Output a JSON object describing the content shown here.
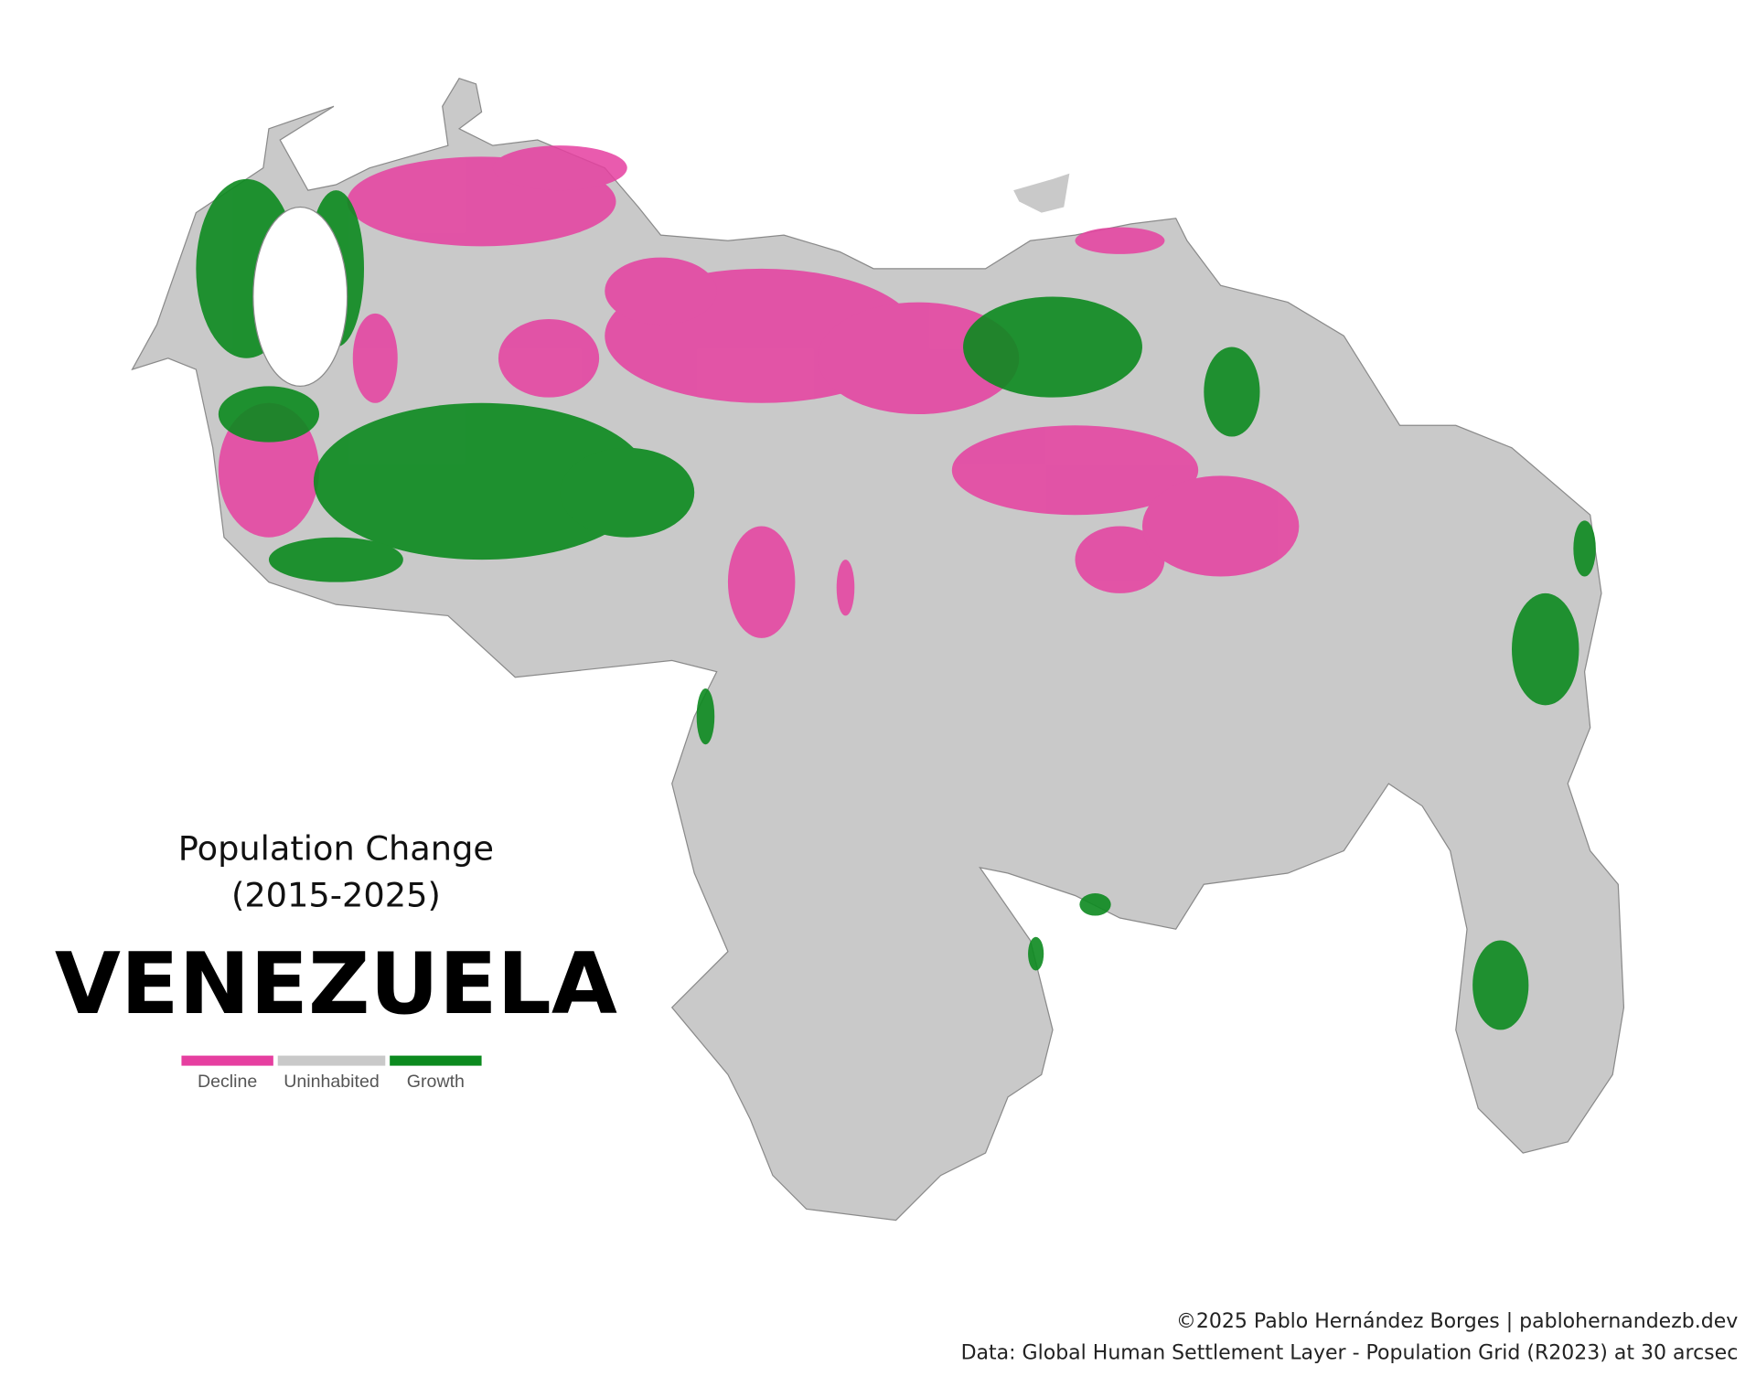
{
  "title": "Population Change",
  "subtitle": "(2015-2025)",
  "country": "VENEZUELA",
  "legend": [
    {
      "label": "Decline",
      "color": "#e63fa0"
    },
    {
      "label": "Uninhabited",
      "color": "#c9c9c9"
    },
    {
      "label": "Growth",
      "color": "#0c8a1f"
    }
  ],
  "credits": [
    "©2025 Pablo Hernández Borges | pablohernandezb.dev",
    "Data: Global Human Settlement Layer - Population Grid (R2023) at 30 arcsec"
  ]
}
